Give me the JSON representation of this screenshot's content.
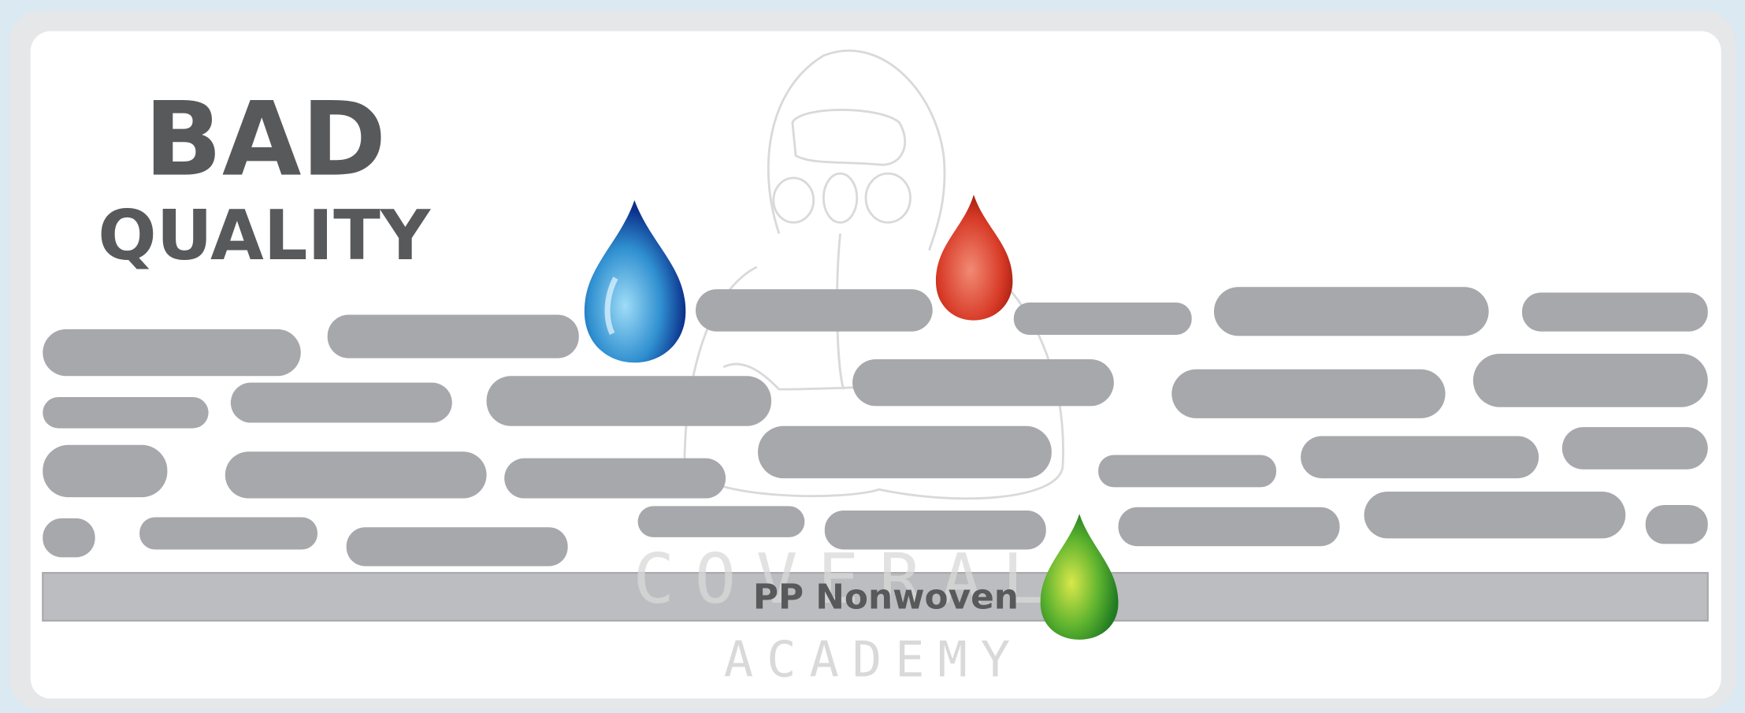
{
  "title": {
    "line1": "BAD",
    "line2": "QUALITY"
  },
  "layer_label": "PP Nonwoven",
  "watermark": {
    "line1": "COVERALL",
    "line2": "ACADEMY"
  }
}
